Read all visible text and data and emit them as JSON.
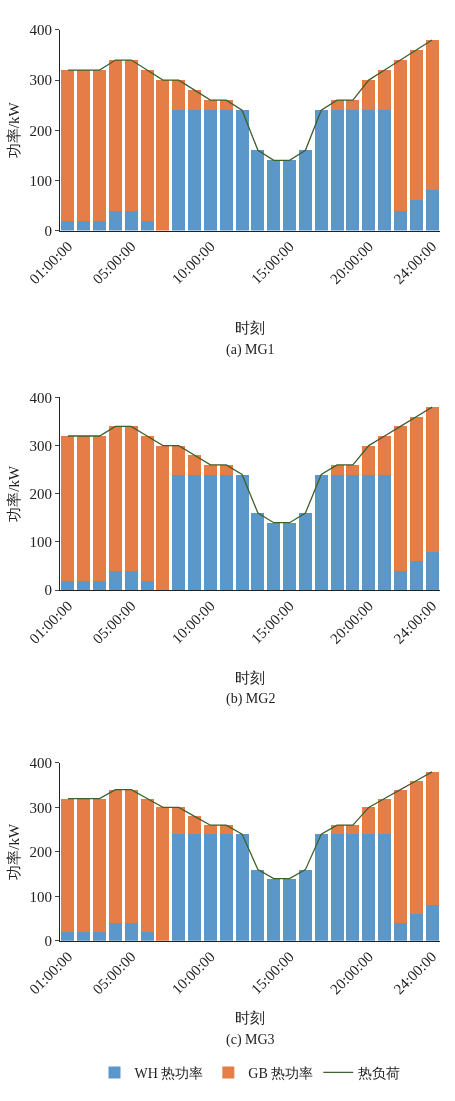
{
  "chart_data": [
    {
      "type": "bar",
      "title": "(a) MG1",
      "xlabel": "时刻",
      "ylabel": "功率/kW",
      "stacked": true,
      "legend": "bottom",
      "grid": false,
      "ylim": [
        0,
        400
      ],
      "yticks": [
        0,
        100,
        200,
        300,
        400
      ],
      "categories": [
        "01:00:00",
        null,
        null,
        null,
        "05:00:00",
        null,
        null,
        null,
        null,
        "10:00:00",
        null,
        null,
        null,
        null,
        "15:00:00",
        null,
        null,
        null,
        null,
        "20:00:00",
        null,
        null,
        null,
        "24:00:00"
      ],
      "series": [
        {
          "name": "WH 热功率",
          "color": "#5b97c9",
          "values": [
            20,
            20,
            20,
            40,
            40,
            20,
            0,
            240,
            240,
            240,
            240,
            240,
            160,
            140,
            140,
            160,
            240,
            240,
            240,
            240,
            240,
            40,
            60,
            80
          ]
        },
        {
          "name": "GB 热功率",
          "color": "#e57d46",
          "values": [
            300,
            300,
            300,
            300,
            300,
            300,
            300,
            60,
            40,
            20,
            20,
            0,
            0,
            0,
            0,
            0,
            0,
            20,
            20,
            60,
            80,
            300,
            300,
            300
          ]
        },
        {
          "name": "热负荷",
          "type": "line",
          "color": "#3f5f2c",
          "marker": "none",
          "line_style": "solid",
          "values": [
            320,
            320,
            320,
            340,
            340,
            320,
            300,
            300,
            280,
            260,
            260,
            240,
            160,
            140,
            140,
            160,
            240,
            260,
            260,
            300,
            320,
            340,
            360,
            380
          ]
        }
      ]
    },
    {
      "type": "bar",
      "title": "(b) MG2",
      "xlabel": "时刻",
      "ylabel": "功率/kW",
      "stacked": true,
      "grid": false,
      "ylim": [
        0,
        400
      ],
      "yticks": [
        0,
        100,
        200,
        300,
        400
      ],
      "categories": [
        "01:00:00",
        null,
        null,
        null,
        "05:00:00",
        null,
        null,
        null,
        null,
        "10:00:00",
        null,
        null,
        null,
        null,
        "15:00:00",
        null,
        null,
        null,
        null,
        "20:00:00",
        null,
        null,
        null,
        "24:00:00"
      ],
      "series": [
        {
          "color": "#5b97c9",
          "values": [
            20,
            20,
            20,
            40,
            40,
            20,
            0,
            240,
            240,
            240,
            240,
            240,
            160,
            140,
            140,
            160,
            240,
            240,
            240,
            240,
            240,
            40,
            60,
            80
          ]
        },
        {
          "color": "#e57d46",
          "values": [
            300,
            300,
            300,
            300,
            300,
            300,
            300,
            60,
            40,
            20,
            20,
            0,
            0,
            0,
            0,
            0,
            0,
            20,
            20,
            60,
            80,
            300,
            300,
            300
          ]
        },
        {
          "type": "line",
          "color": "#3f5f2c",
          "marker": "none",
          "line_style": "solid",
          "values": [
            320,
            320,
            320,
            340,
            340,
            320,
            300,
            300,
            280,
            260,
            260,
            240,
            160,
            140,
            140,
            160,
            240,
            260,
            260,
            300,
            320,
            340,
            360,
            380
          ]
        }
      ]
    },
    {
      "type": "bar",
      "title": "(c) MG3",
      "xlabel": "时刻",
      "ylabel": "功率/kW",
      "stacked": true,
      "grid": false,
      "ylim": [
        0,
        400
      ],
      "yticks": [
        0,
        100,
        200,
        300,
        400
      ],
      "categories": [
        "01:00:00",
        null,
        null,
        null,
        "05:00:00",
        null,
        null,
        null,
        null,
        "10:00:00",
        null,
        null,
        null,
        null,
        "15:00:00",
        null,
        null,
        null,
        null,
        "20:00:00",
        null,
        null,
        null,
        "24:00:00"
      ],
      "series": [
        {
          "color": "#5b97c9",
          "values": [
            20,
            20,
            20,
            40,
            40,
            20,
            0,
            240,
            240,
            240,
            240,
            240,
            160,
            140,
            140,
            160,
            240,
            240,
            240,
            240,
            240,
            40,
            60,
            80
          ]
        },
        {
          "color": "#e57d46",
          "values": [
            300,
            300,
            300,
            300,
            300,
            300,
            300,
            60,
            40,
            20,
            20,
            0,
            0,
            0,
            0,
            0,
            0,
            20,
            20,
            60,
            80,
            300,
            300,
            300
          ]
        },
        {
          "type": "line",
          "color": "#3f5f2c",
          "marker": "none",
          "line_style": "solid",
          "values": [
            320,
            320,
            320,
            340,
            340,
            320,
            300,
            300,
            280,
            260,
            260,
            240,
            160,
            140,
            140,
            160,
            240,
            260,
            260,
            300,
            320,
            340,
            360,
            380
          ]
        }
      ]
    }
  ]
}
